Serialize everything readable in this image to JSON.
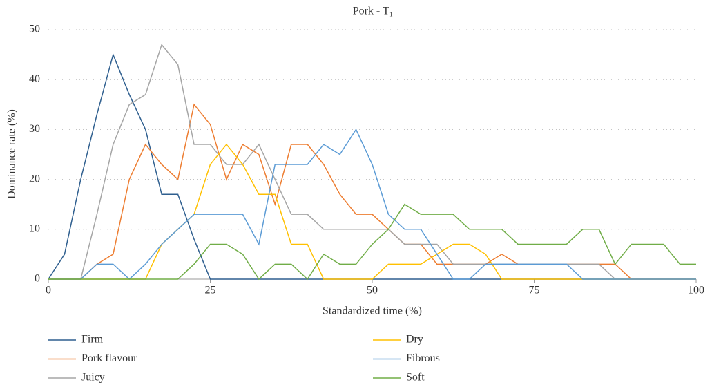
{
  "chart_data": {
    "type": "line",
    "title": "Pork - T₁",
    "x_label": "Standardized time (%)",
    "y_label": "Dominance rate (%)",
    "x": [
      0,
      2.5,
      5,
      7.5,
      10,
      12.5,
      15,
      17.5,
      20,
      22.5,
      25,
      27.5,
      30,
      32.5,
      35,
      37.5,
      40,
      42.5,
      45,
      47.5,
      50,
      52.5,
      55,
      57.5,
      60,
      62.5,
      65,
      67.5,
      70,
      72.5,
      75,
      77.5,
      80,
      82.5,
      85,
      87.5,
      90,
      92.5,
      95,
      97.5,
      100
    ],
    "series": [
      {
        "name": "Firm",
        "color": "#2f5f8f",
        "values": [
          0,
          5,
          20,
          33,
          45,
          37,
          30,
          17,
          17,
          8,
          0,
          0,
          0,
          0,
          0,
          0,
          0,
          0,
          0,
          0,
          0,
          0,
          0,
          0,
          0,
          0,
          0,
          0,
          0,
          0,
          0,
          0,
          0,
          0,
          0,
          0,
          0,
          0,
          0,
          0,
          0
        ]
      },
      {
        "name": "Pork flavour",
        "color": "#ed7d31",
        "values": [
          0,
          0,
          0,
          3,
          5,
          20,
          27,
          23,
          20,
          35,
          31,
          20,
          27,
          25,
          15,
          27,
          27,
          23,
          17,
          13,
          13,
          10,
          7,
          7,
          3,
          3,
          3,
          3,
          5,
          3,
          3,
          3,
          3,
          3,
          3,
          3,
          0,
          0,
          0,
          0,
          0
        ]
      },
      {
        "name": "Juicy",
        "color": "#a5a5a5",
        "values": [
          0,
          0,
          0,
          13,
          27,
          35,
          37,
          47,
          43,
          27,
          27,
          23,
          23,
          27,
          20,
          13,
          13,
          10,
          10,
          10,
          10,
          10,
          7,
          7,
          7,
          3,
          3,
          3,
          3,
          3,
          3,
          3,
          3,
          3,
          3,
          0,
          0,
          0,
          0,
          0,
          0
        ]
      },
      {
        "name": "Dry",
        "color": "#ffc000",
        "values": [
          0,
          0,
          0,
          0,
          0,
          0,
          0,
          7,
          10,
          13,
          23,
          27,
          23,
          17,
          17,
          7,
          7,
          0,
          0,
          0,
          0,
          3,
          3,
          3,
          5,
          7,
          7,
          5,
          0,
          0,
          0,
          0,
          0,
          0,
          0,
          0,
          0,
          0,
          0,
          0,
          0
        ]
      },
      {
        "name": "Fibrous",
        "color": "#5b9bd5",
        "values": [
          0,
          0,
          0,
          3,
          3,
          0,
          3,
          7,
          10,
          13,
          13,
          13,
          13,
          7,
          23,
          23,
          23,
          27,
          25,
          30,
          23,
          13,
          10,
          10,
          5,
          0,
          0,
          3,
          3,
          3,
          3,
          3,
          3,
          0,
          0,
          0,
          0,
          0,
          0,
          0,
          0
        ]
      },
      {
        "name": "Soft",
        "color": "#70ad47",
        "values": [
          0,
          0,
          0,
          0,
          0,
          0,
          0,
          0,
          0,
          3,
          7,
          7,
          5,
          0,
          3,
          3,
          0,
          5,
          3,
          3,
          7,
          10,
          15,
          13,
          13,
          13,
          10,
          10,
          10,
          7,
          7,
          7,
          7,
          10,
          10,
          3,
          7,
          7,
          7,
          3,
          3
        ]
      }
    ],
    "xlim": [
      0,
      100
    ],
    "xticks": [
      0,
      25,
      50,
      75,
      100
    ],
    "ylim": [
      0,
      50
    ],
    "yticks": [
      0,
      10,
      20,
      30,
      40,
      50
    ],
    "grid": true
  }
}
